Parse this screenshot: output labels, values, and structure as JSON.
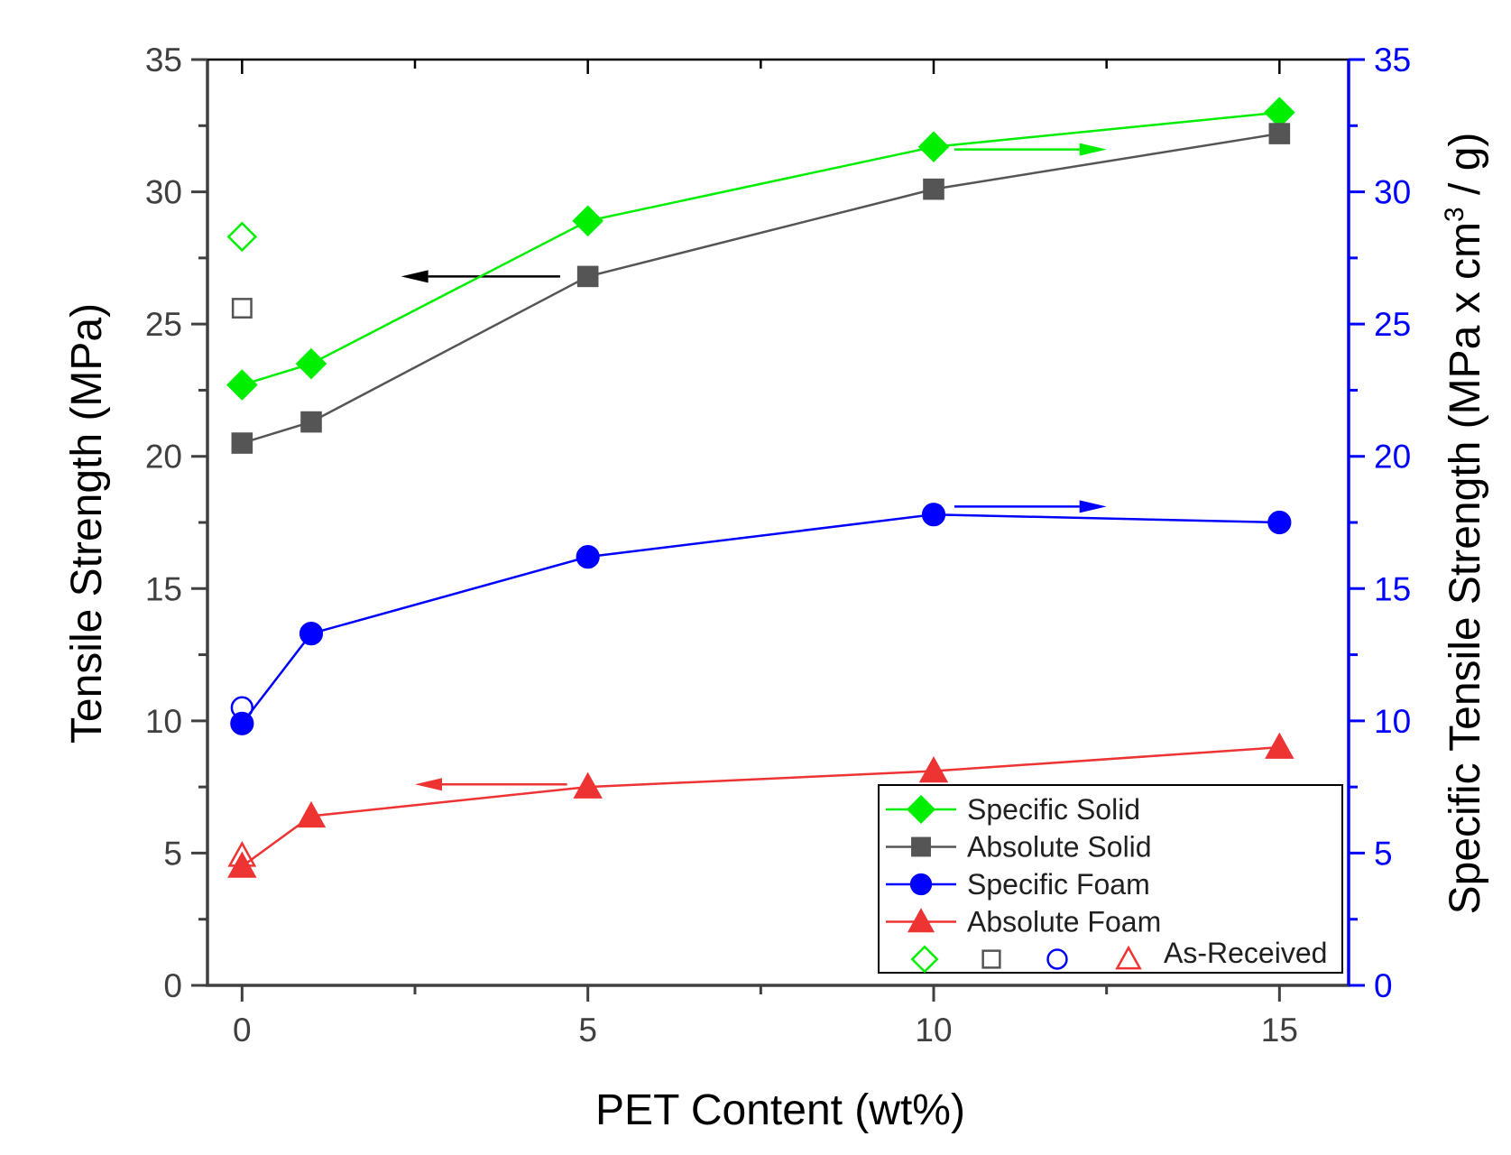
{
  "chart_data": {
    "type": "line",
    "xlabel": "PET Content (wt%)",
    "ylabel": "Tensile Strength (MPa)",
    "y2label": "Specific Tensile Strength  (MPa x cm",
    "y2label_sup": "3",
    "y2label_tail": " / g)",
    "xlim": [
      -0.5,
      16
    ],
    "ylim": [
      0,
      35
    ],
    "y2lim": [
      0,
      35
    ],
    "x_ticks": [
      0,
      5,
      10,
      15
    ],
    "x_tick_labels": [
      "0",
      "5",
      "10",
      "15"
    ],
    "y_ticks": [
      0,
      5,
      10,
      15,
      20,
      25,
      30,
      35
    ],
    "y_tick_labels": [
      "0",
      "5",
      "10",
      "15",
      "20",
      "25",
      "30",
      "35"
    ],
    "y2_ticks": [
      0,
      5,
      10,
      15,
      20,
      25,
      30,
      35
    ],
    "y2_tick_labels": [
      "0",
      "5",
      "10",
      "15",
      "20",
      "25",
      "30",
      "35"
    ],
    "series": [
      {
        "name": "Specific Solid",
        "color": "#00ee00",
        "marker": "diamond",
        "axis": "right",
        "x": [
          0,
          1,
          5,
          10,
          15
        ],
        "values": [
          22.7,
          23.5,
          28.9,
          31.7,
          33.0
        ]
      },
      {
        "name": "Absolute Solid",
        "color": "#555555",
        "marker": "square",
        "axis": "left",
        "x": [
          0,
          1,
          5,
          10,
          15
        ],
        "values": [
          20.5,
          21.3,
          26.8,
          30.1,
          32.2
        ]
      },
      {
        "name": "Specific Foam",
        "color": "#0000ff",
        "marker": "circle",
        "axis": "right",
        "x": [
          0,
          1,
          5,
          10,
          15
        ],
        "values": [
          9.9,
          13.3,
          16.2,
          17.8,
          17.5
        ]
      },
      {
        "name": "Absolute Foam",
        "color": "#ee3333",
        "marker": "triangle",
        "axis": "left",
        "x": [
          0,
          1,
          5,
          10,
          15
        ],
        "values": [
          4.5,
          6.4,
          7.5,
          8.1,
          9.0
        ]
      }
    ],
    "as_received": {
      "label": "As-Received",
      "points": [
        {
          "series": "Specific Solid",
          "color": "#00ee00",
          "marker": "diamond",
          "x": 0,
          "value": 28.3
        },
        {
          "series": "Absolute Solid",
          "color": "#555555",
          "marker": "square",
          "x": 0,
          "value": 25.6
        },
        {
          "series": "Specific Foam",
          "color": "#0000ff",
          "marker": "circle",
          "x": 0,
          "value": 10.5
        },
        {
          "series": "Absolute Foam",
          "color": "#ee3333",
          "marker": "triangle",
          "x": 0,
          "value": 4.9
        }
      ]
    },
    "axis_arrows": [
      {
        "series": "Specific Solid",
        "direction": "right",
        "color": "#00ee00",
        "x": [
          10.3,
          12.5
        ],
        "value": 31.6
      },
      {
        "series": "Absolute Solid",
        "direction": "left",
        "color": "#000000",
        "x": [
          4.6,
          2.3
        ],
        "value": 26.8
      },
      {
        "series": "Specific Foam",
        "direction": "right",
        "color": "#0000ff",
        "x": [
          10.3,
          12.5
        ],
        "value": 18.1
      },
      {
        "series": "Absolute Foam",
        "direction": "left",
        "color": "#ee3333",
        "x": [
          4.7,
          2.5
        ],
        "value": 7.6
      }
    ],
    "legend": {
      "position": "bottom-right"
    }
  }
}
